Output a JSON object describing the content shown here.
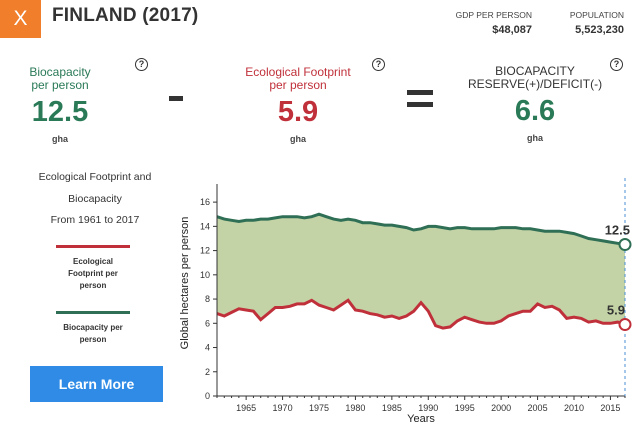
{
  "header": {
    "close_label": "X",
    "title": "FINLAND (2017)",
    "gdp_label": "GDP PER PERSON",
    "gdp_value": "$48,087",
    "pop_label": "POPULATION",
    "pop_value": "5,523,230"
  },
  "metrics": {
    "help_glyph": "?",
    "biocapacity": {
      "label_line1": "Biocapacity",
      "label_line2": "per person",
      "value": "12.5",
      "unit": "gha"
    },
    "footprint": {
      "label_line1": "Ecological Footprint",
      "label_line2": "per person",
      "value": "5.9",
      "unit": "gha"
    },
    "reserve": {
      "label_line1": "BIOCAPACITY",
      "label_line2": "RESERVE(+)/DEFICIT(-)",
      "value": "6.6",
      "unit": "gha"
    }
  },
  "sidebar": {
    "desc_line1": "Ecological Footprint and",
    "desc_line2": "Biocapacity",
    "desc_line3": "From 1961 to 2017",
    "legend_eco_line1": "Ecological",
    "legend_eco_line2": "Footprint per",
    "legend_eco_line3": "person",
    "legend_bio_line1": "Biocapacity per",
    "legend_bio_line2": "person",
    "learn_more": "Learn More"
  },
  "colors": {
    "biocapacity": "#2f6f55",
    "footprint": "#c0303a",
    "reserve_fill": "#c3d3a6",
    "accent_orange": "#f07e2a",
    "button_blue": "#2f8be6"
  },
  "chart_data": {
    "type": "area",
    "title": "Ecological Footprint and Biocapacity",
    "xlabel": "Years",
    "ylabel": "Global hectares per person",
    "xlim": [
      1961,
      2017
    ],
    "ylim": [
      0,
      17
    ],
    "x_ticks": [
      1965,
      1970,
      1975,
      1980,
      1985,
      1990,
      1995,
      2000,
      2005,
      2010,
      2015
    ],
    "y_ticks": [
      0,
      2,
      4,
      6,
      8,
      10,
      12,
      14,
      16
    ],
    "series": [
      {
        "name": "Biocapacity per person",
        "end_label": "12.5",
        "x": [
          1961,
          1962,
          1963,
          1964,
          1965,
          1966,
          1967,
          1968,
          1969,
          1970,
          1971,
          1972,
          1973,
          1974,
          1975,
          1976,
          1977,
          1978,
          1979,
          1980,
          1981,
          1982,
          1983,
          1984,
          1985,
          1986,
          1987,
          1988,
          1989,
          1990,
          1991,
          1992,
          1993,
          1994,
          1995,
          1996,
          1997,
          1998,
          1999,
          2000,
          2001,
          2002,
          2003,
          2004,
          2005,
          2006,
          2007,
          2008,
          2009,
          2010,
          2011,
          2012,
          2013,
          2014,
          2015,
          2016,
          2017
        ],
        "values": [
          14.8,
          14.6,
          14.5,
          14.4,
          14.5,
          14.5,
          14.6,
          14.6,
          14.7,
          14.8,
          14.8,
          14.8,
          14.7,
          14.8,
          15.0,
          14.8,
          14.6,
          14.5,
          14.6,
          14.5,
          14.3,
          14.3,
          14.2,
          14.1,
          14.1,
          14.0,
          13.9,
          13.7,
          13.8,
          14.0,
          14.0,
          13.9,
          13.8,
          13.9,
          13.9,
          13.8,
          13.8,
          13.8,
          13.8,
          13.9,
          13.9,
          13.9,
          13.8,
          13.8,
          13.7,
          13.6,
          13.6,
          13.6,
          13.5,
          13.4,
          13.2,
          13.0,
          12.9,
          12.8,
          12.7,
          12.6,
          12.5
        ]
      },
      {
        "name": "Ecological Footprint per person",
        "end_label": "5.9",
        "x": [
          1961,
          1962,
          1963,
          1964,
          1965,
          1966,
          1967,
          1968,
          1969,
          1970,
          1971,
          1972,
          1973,
          1974,
          1975,
          1976,
          1977,
          1978,
          1979,
          1980,
          1981,
          1982,
          1983,
          1984,
          1985,
          1986,
          1987,
          1988,
          1989,
          1990,
          1991,
          1992,
          1993,
          1994,
          1995,
          1996,
          1997,
          1998,
          1999,
          2000,
          2001,
          2002,
          2003,
          2004,
          2005,
          2006,
          2007,
          2008,
          2009,
          2010,
          2011,
          2012,
          2013,
          2014,
          2015,
          2016,
          2017
        ],
        "values": [
          6.8,
          6.6,
          6.9,
          7.2,
          7.1,
          7.0,
          6.3,
          6.8,
          7.3,
          7.3,
          7.4,
          7.6,
          7.6,
          7.9,
          7.5,
          7.3,
          7.1,
          7.5,
          7.9,
          7.1,
          7.0,
          6.8,
          6.7,
          6.5,
          6.6,
          6.4,
          6.6,
          7.0,
          7.7,
          7.0,
          5.8,
          5.6,
          5.7,
          6.2,
          6.5,
          6.3,
          6.1,
          6.0,
          6.0,
          6.2,
          6.6,
          6.8,
          7.0,
          7.0,
          7.6,
          7.3,
          7.4,
          7.1,
          6.4,
          6.5,
          6.4,
          6.1,
          6.2,
          6.0,
          6.0,
          6.1,
          5.9
        ]
      }
    ]
  }
}
